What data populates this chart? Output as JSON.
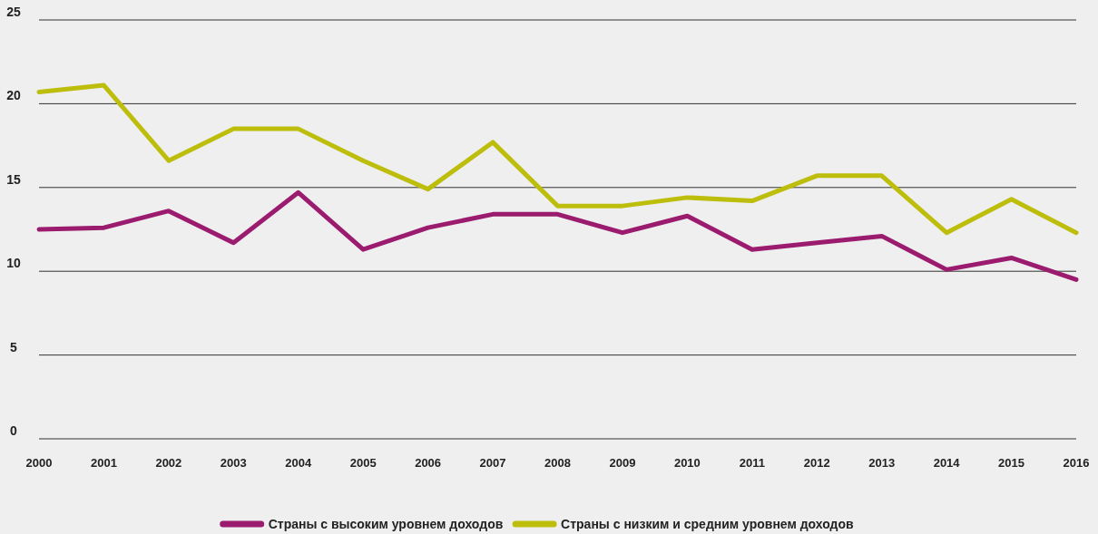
{
  "chart_data": {
    "type": "line",
    "x": [
      2000,
      2001,
      2002,
      2003,
      2004,
      2005,
      2006,
      2007,
      2008,
      2009,
      2010,
      2011,
      2012,
      2013,
      2014,
      2015,
      2016
    ],
    "xlim": [
      2000,
      2016
    ],
    "xticks": [
      2000,
      2001,
      2002,
      2003,
      2004,
      2005,
      2006,
      2007,
      2008,
      2009,
      2010,
      2011,
      2012,
      2013,
      2014,
      2015,
      2016
    ],
    "ylim": [
      0,
      25
    ],
    "yticks": [
      0,
      5,
      10,
      15,
      20,
      25
    ],
    "grid": "y",
    "legend": "bottom",
    "marker": "none",
    "line_style": "solid",
    "series": [
      {
        "name": "Страны с высоким уровнем доходов",
        "color": "#9b1b6e",
        "values": [
          12.5,
          12.6,
          13.6,
          11.7,
          14.7,
          11.3,
          12.6,
          13.4,
          13.4,
          12.3,
          13.3,
          11.3,
          11.7,
          12.1,
          10.1,
          10.8,
          9.5
        ]
      },
      {
        "name": "Страны с низким и средним уровнем доходов",
        "color": "#bdbd0c",
        "values": [
          20.7,
          21.1,
          16.6,
          18.5,
          18.5,
          16.6,
          14.9,
          17.7,
          13.9,
          13.9,
          14.4,
          14.2,
          15.7,
          15.7,
          12.3,
          14.3,
          12.3
        ]
      }
    ]
  }
}
